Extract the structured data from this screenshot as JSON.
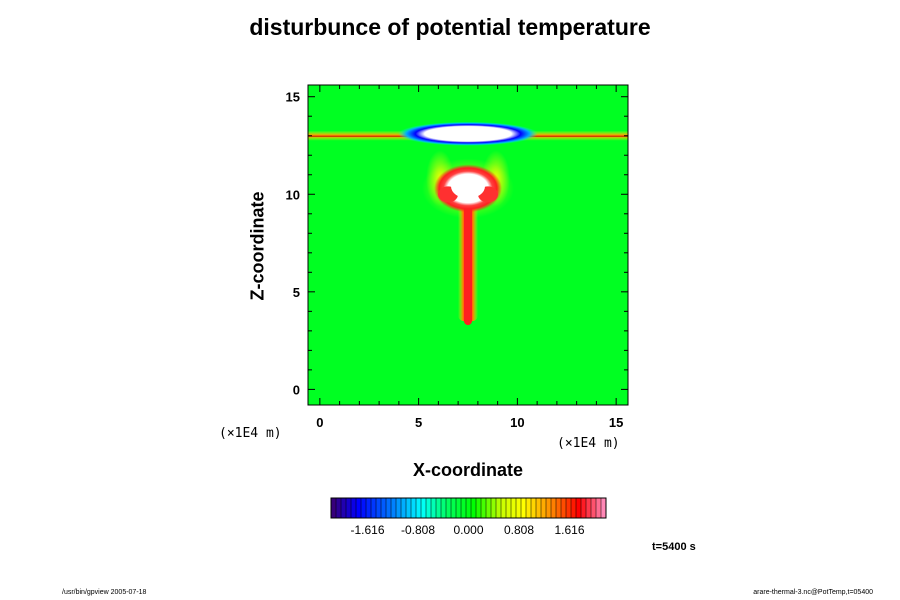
{
  "chart_data": {
    "type": "heatmap",
    "title": "disturbunce of potential temperature",
    "xlabel": "X-coordinate",
    "ylabel": "Z-coordinate",
    "x_unit": "(×1E4 m)",
    "y_unit": "(×1E4 m)",
    "xlim": [
      -0.6,
      15.6
    ],
    "ylim": [
      -0.8,
      15.6
    ],
    "x_ticks": [
      "0",
      "5",
      "10",
      "15"
    ],
    "y_ticks": [
      "0",
      "5",
      "10",
      "15"
    ],
    "colorbar": {
      "labels": [
        "-1.616",
        "-0.808",
        "0.000",
        "0.808",
        "1.616"
      ],
      "range": [
        -2.2,
        2.2
      ]
    },
    "features": [
      {
        "name": "warm plume stem",
        "x": 7.5,
        "z_range": [
          3.5,
          9.6
        ],
        "value": 1.4
      },
      {
        "name": "warm plume head",
        "x": 7.5,
        "z": 10.3,
        "value": 2.2
      },
      {
        "name": "cold anomaly near top",
        "x": 7.5,
        "z": 13.1,
        "value": -2.2
      },
      {
        "name": "warm layer",
        "z": 13.0,
        "value": 1.0
      }
    ],
    "annotation": "t=5400 s"
  },
  "footer": {
    "left": "/usr/bin/gpview 2005-07-18",
    "right": "arare-thermal-3.nc@PotTemp,t=05400"
  }
}
